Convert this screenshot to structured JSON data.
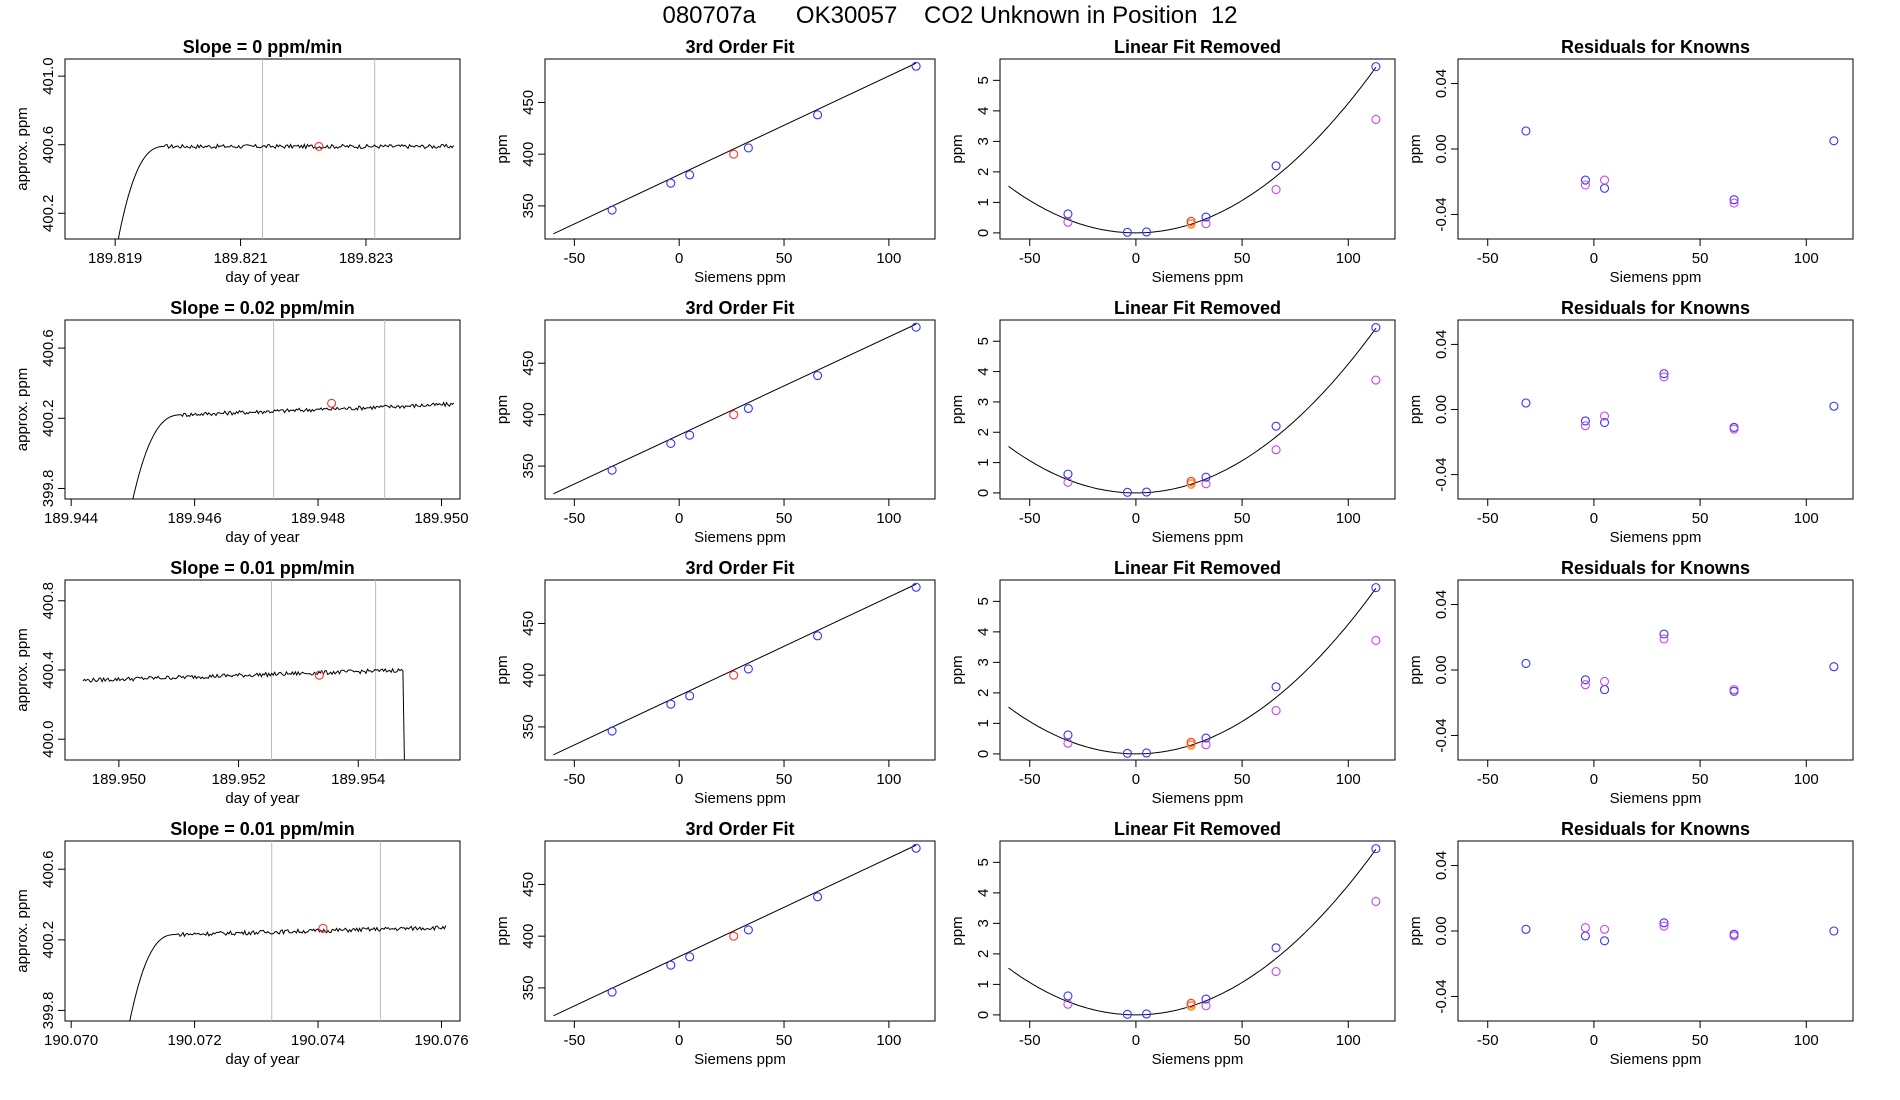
{
  "title": {
    "run_id": "080707a",
    "tank_id": "OK30057",
    "description": "CO2 Unknown in Position  12"
  },
  "colors": {
    "trace": "#000000",
    "known": "#3333ff",
    "unknown": "#ff3333",
    "linfit": "#cc44ee",
    "sample": "#ff9933",
    "vline": "#bbbbbb"
  },
  "chart_data": [
    {
      "type": "line",
      "row": 0,
      "panel": "time-series",
      "title": "Slope =  0  ppm/min",
      "xlabel": "day of year",
      "ylabel": "approx. ppm",
      "xlim": [
        189.8182,
        189.8245
      ],
      "ylim": [
        400.05,
        401.1
      ],
      "xticks": [
        189.819,
        189.821,
        189.823
      ],
      "xtick_labels": [
        "189.819",
        "189.821",
        "189.823"
      ],
      "yticks": [
        400.2,
        400.6,
        401.0
      ],
      "ytick_labels": [
        "400.2",
        "400.6",
        "401.0"
      ],
      "trace": {
        "x_start": 189.81905,
        "x_end": 189.8244,
        "plateau": 400.59,
        "rise_end": 189.8198,
        "start_value": 400.05,
        "noise": 0.012,
        "drop_x": null,
        "drop_to": null,
        "tail_slope": 0
      },
      "vlines": [
        189.82135,
        189.82314
      ],
      "marker": {
        "x": 189.82225,
        "y": 400.59
      }
    },
    {
      "type": "line",
      "row": 1,
      "panel": "time-series",
      "title": "Slope =  0.02  ppm/min",
      "xlabel": "day of year",
      "ylabel": "approx. ppm",
      "xlim": [
        189.9439,
        189.9503
      ],
      "ylim": [
        399.74,
        400.76
      ],
      "xticks": [
        189.944,
        189.946,
        189.948,
        189.95
      ],
      "xtick_labels": [
        "189.944",
        "189.946",
        "189.948",
        "189.950"
      ],
      "yticks": [
        399.8,
        400.2,
        400.6
      ],
      "ytick_labels": [
        "399.8",
        "400.2",
        "400.6"
      ],
      "trace": {
        "x_start": 189.945,
        "x_end": 189.9502,
        "plateau": 400.22,
        "rise_end": 189.9458,
        "start_value": 399.74,
        "noise": 0.012,
        "drop_x": null,
        "drop_to": null,
        "tail_slope": 0.06
      },
      "vlines": [
        189.94728,
        189.94908
      ],
      "marker": {
        "x": 189.94822,
        "y": 400.285
      }
    },
    {
      "type": "line",
      "row": 2,
      "panel": "time-series",
      "title": "Slope =  0.01  ppm/min",
      "xlabel": "day of year",
      "ylabel": "approx. ppm",
      "xlim": [
        189.9491,
        189.9557
      ],
      "ylim": [
        399.88,
        400.92
      ],
      "xticks": [
        189.95,
        189.952,
        189.954
      ],
      "xtick_labels": [
        "189.950",
        "189.952",
        "189.954"
      ],
      "yticks": [
        400.0,
        400.4,
        400.8
      ],
      "ytick_labels": [
        "400.0",
        "400.4",
        "400.8"
      ],
      "trace": {
        "x_start": 189.9494,
        "x_end": 189.95482,
        "plateau": 400.34,
        "rise_end": 189.9494,
        "start_value": 400.34,
        "noise": 0.012,
        "drop_x": 189.95475,
        "drop_to": 399.88,
        "tail_slope": 0.06
      },
      "vlines": [
        189.95255,
        189.95429
      ],
      "marker": {
        "x": 189.95335,
        "y": 400.37
      }
    },
    {
      "type": "line",
      "row": 3,
      "panel": "time-series",
      "title": "Slope =  0.01  ppm/min",
      "xlabel": "day of year",
      "ylabel": "approx. ppm",
      "xlim": [
        190.0699,
        190.0763
      ],
      "ylim": [
        399.74,
        400.76
      ],
      "xticks": [
        190.07,
        190.072,
        190.074,
        190.076
      ],
      "xtick_labels": [
        "190.070",
        "190.072",
        "190.074",
        "190.076"
      ],
      "yticks": [
        399.8,
        400.2,
        400.6
      ],
      "ytick_labels": [
        "399.8",
        "400.2",
        "400.6"
      ],
      "trace": {
        "x_start": 190.07095,
        "x_end": 190.07607,
        "plateau": 400.23,
        "rise_end": 190.0717,
        "start_value": 399.74,
        "noise": 0.012,
        "drop_x": null,
        "drop_to": null,
        "tail_slope": 0.04
      },
      "vlines": [
        190.07325,
        190.07501
      ],
      "marker": {
        "x": 190.07408,
        "y": 400.265
      }
    },
    {
      "type": "scatter",
      "row": "all",
      "panel": "cubic-fit",
      "title": "3rd Order Fit",
      "xlabel": "Siemens ppm",
      "ylabel": "ppm",
      "xlim": [
        -64,
        122
      ],
      "ylim": [
        318,
        492
      ],
      "xticks": [
        -50,
        0,
        50,
        100
      ],
      "xtick_labels": [
        "-50",
        "0",
        "50",
        "100"
      ],
      "yticks": [
        350,
        400,
        450
      ],
      "ytick_labels": [
        "350",
        "400",
        "450"
      ],
      "fit_line": {
        "x": [
          -60,
          113
        ],
        "y": [
          323,
          488
        ]
      },
      "knowns": {
        "x": [
          -32,
          -4,
          5,
          33,
          66,
          113
        ],
        "y": [
          346,
          372,
          380,
          406,
          438,
          485
        ]
      },
      "unknown": {
        "x": [
          26
        ],
        "y": [
          400
        ]
      }
    },
    {
      "type": "scatter",
      "row": "all",
      "panel": "linear-fit-removed",
      "title": "Linear Fit Removed",
      "xlabel": "Siemens ppm",
      "ylabel": "ppm",
      "xlim": [
        -64,
        122
      ],
      "ylim": [
        -0.2,
        5.7
      ],
      "xticks": [
        -50,
        0,
        50,
        100
      ],
      "xtick_labels": [
        "-50",
        "0",
        "50",
        "100"
      ],
      "yticks": [
        0,
        1,
        2,
        3,
        4,
        5
      ],
      "ytick_labels": [
        "0",
        "1",
        "2",
        "3",
        "4",
        "5"
      ],
      "curve": {
        "x_range": [
          -60,
          113
        ],
        "vertex_x": 0,
        "coef": 0.000425
      },
      "knowns": {
        "x": [
          -32,
          -4,
          5,
          33,
          66,
          113
        ],
        "y": [
          0.62,
          0.02,
          0.03,
          0.52,
          2.2,
          5.45
        ]
      },
      "linear_residuals": {
        "x": [
          -32,
          33,
          66,
          113
        ],
        "y": [
          0.35,
          0.3,
          1.42,
          3.72
        ]
      },
      "unknown": {
        "x": [
          26
        ],
        "y": [
          0.38
        ]
      },
      "samples": {
        "x": [
          26,
          26
        ],
        "y": [
          0.28,
          0.32
        ]
      }
    },
    {
      "type": "scatter",
      "row": 0,
      "panel": "residuals",
      "title": "Residuals for Knowns",
      "xlabel": "Siemens ppm",
      "ylabel": "ppm",
      "xlim": [
        -64,
        122
      ],
      "ylim": [
        -0.055,
        0.055
      ],
      "xticks": [
        -50,
        0,
        50,
        100
      ],
      "xtick_labels": [
        "-50",
        "0",
        "50",
        "100"
      ],
      "yticks": [
        -0.04,
        0.0,
        0.04
      ],
      "ytick_labels": [
        "-0.04",
        "0.00",
        "0.04"
      ],
      "series": [
        {
          "name": "cubic",
          "x": [
            -32,
            -4,
            5,
            66,
            113
          ],
          "y": [
            0.011,
            -0.019,
            -0.024,
            -0.031,
            0.005
          ]
        },
        {
          "name": "alt",
          "x": [
            -4,
            5,
            66
          ],
          "y": [
            -0.022,
            -0.019,
            -0.033
          ]
        }
      ]
    },
    {
      "type": "scatter",
      "row": 1,
      "panel": "residuals",
      "title": "Residuals for Knowns",
      "xlabel": "Siemens ppm",
      "ylabel": "ppm",
      "xlim": [
        -64,
        122
      ],
      "ylim": [
        -0.055,
        0.055
      ],
      "xticks": [
        -50,
        0,
        50,
        100
      ],
      "xtick_labels": [
        "-50",
        "0",
        "50",
        "100"
      ],
      "yticks": [
        -0.04,
        0.0,
        0.04
      ],
      "ytick_labels": [
        "-0.04",
        "0.00",
        "0.04"
      ],
      "series": [
        {
          "name": "cubic",
          "x": [
            -32,
            -4,
            5,
            33,
            66,
            113
          ],
          "y": [
            0.004,
            -0.007,
            -0.008,
            0.022,
            -0.011,
            0.002
          ]
        },
        {
          "name": "alt",
          "x": [
            -4,
            5,
            33,
            66
          ],
          "y": [
            -0.01,
            -0.004,
            0.02,
            -0.012
          ]
        }
      ]
    },
    {
      "type": "scatter",
      "row": 2,
      "panel": "residuals",
      "title": "Residuals for Knowns",
      "xlabel": "Siemens ppm",
      "ylabel": "ppm",
      "xlim": [
        -64,
        122
      ],
      "ylim": [
        -0.055,
        0.055
      ],
      "xticks": [
        -50,
        0,
        50,
        100
      ],
      "xtick_labels": [
        "-50",
        "0",
        "50",
        "100"
      ],
      "yticks": [
        -0.04,
        0.0,
        0.04
      ],
      "ytick_labels": [
        "-0.04",
        "0.00",
        "0.04"
      ],
      "series": [
        {
          "name": "cubic",
          "x": [
            -32,
            -4,
            5,
            33,
            66,
            113
          ],
          "y": [
            0.004,
            -0.006,
            -0.012,
            0.022,
            -0.013,
            0.002
          ]
        },
        {
          "name": "alt",
          "x": [
            -4,
            5,
            33,
            66
          ],
          "y": [
            -0.009,
            -0.007,
            0.019,
            -0.012
          ]
        }
      ]
    },
    {
      "type": "scatter",
      "row": 3,
      "panel": "residuals",
      "title": "Residuals for Knowns",
      "xlabel": "Siemens ppm",
      "ylabel": "ppm",
      "xlim": [
        -64,
        122
      ],
      "ylim": [
        -0.055,
        0.055
      ],
      "xticks": [
        -50,
        0,
        50,
        100
      ],
      "xtick_labels": [
        "-50",
        "0",
        "50",
        "100"
      ],
      "yticks": [
        -0.04,
        0.0,
        0.04
      ],
      "ytick_labels": [
        "-0.04",
        "0.00",
        "0.04"
      ],
      "series": [
        {
          "name": "cubic",
          "x": [
            -32,
            -4,
            5,
            33,
            66,
            113
          ],
          "y": [
            0.001,
            -0.003,
            -0.006,
            0.005,
            -0.002,
            0.0
          ]
        },
        {
          "name": "alt",
          "x": [
            -4,
            5,
            33,
            66
          ],
          "y": [
            0.002,
            0.001,
            0.003,
            -0.003
          ]
        }
      ]
    }
  ]
}
